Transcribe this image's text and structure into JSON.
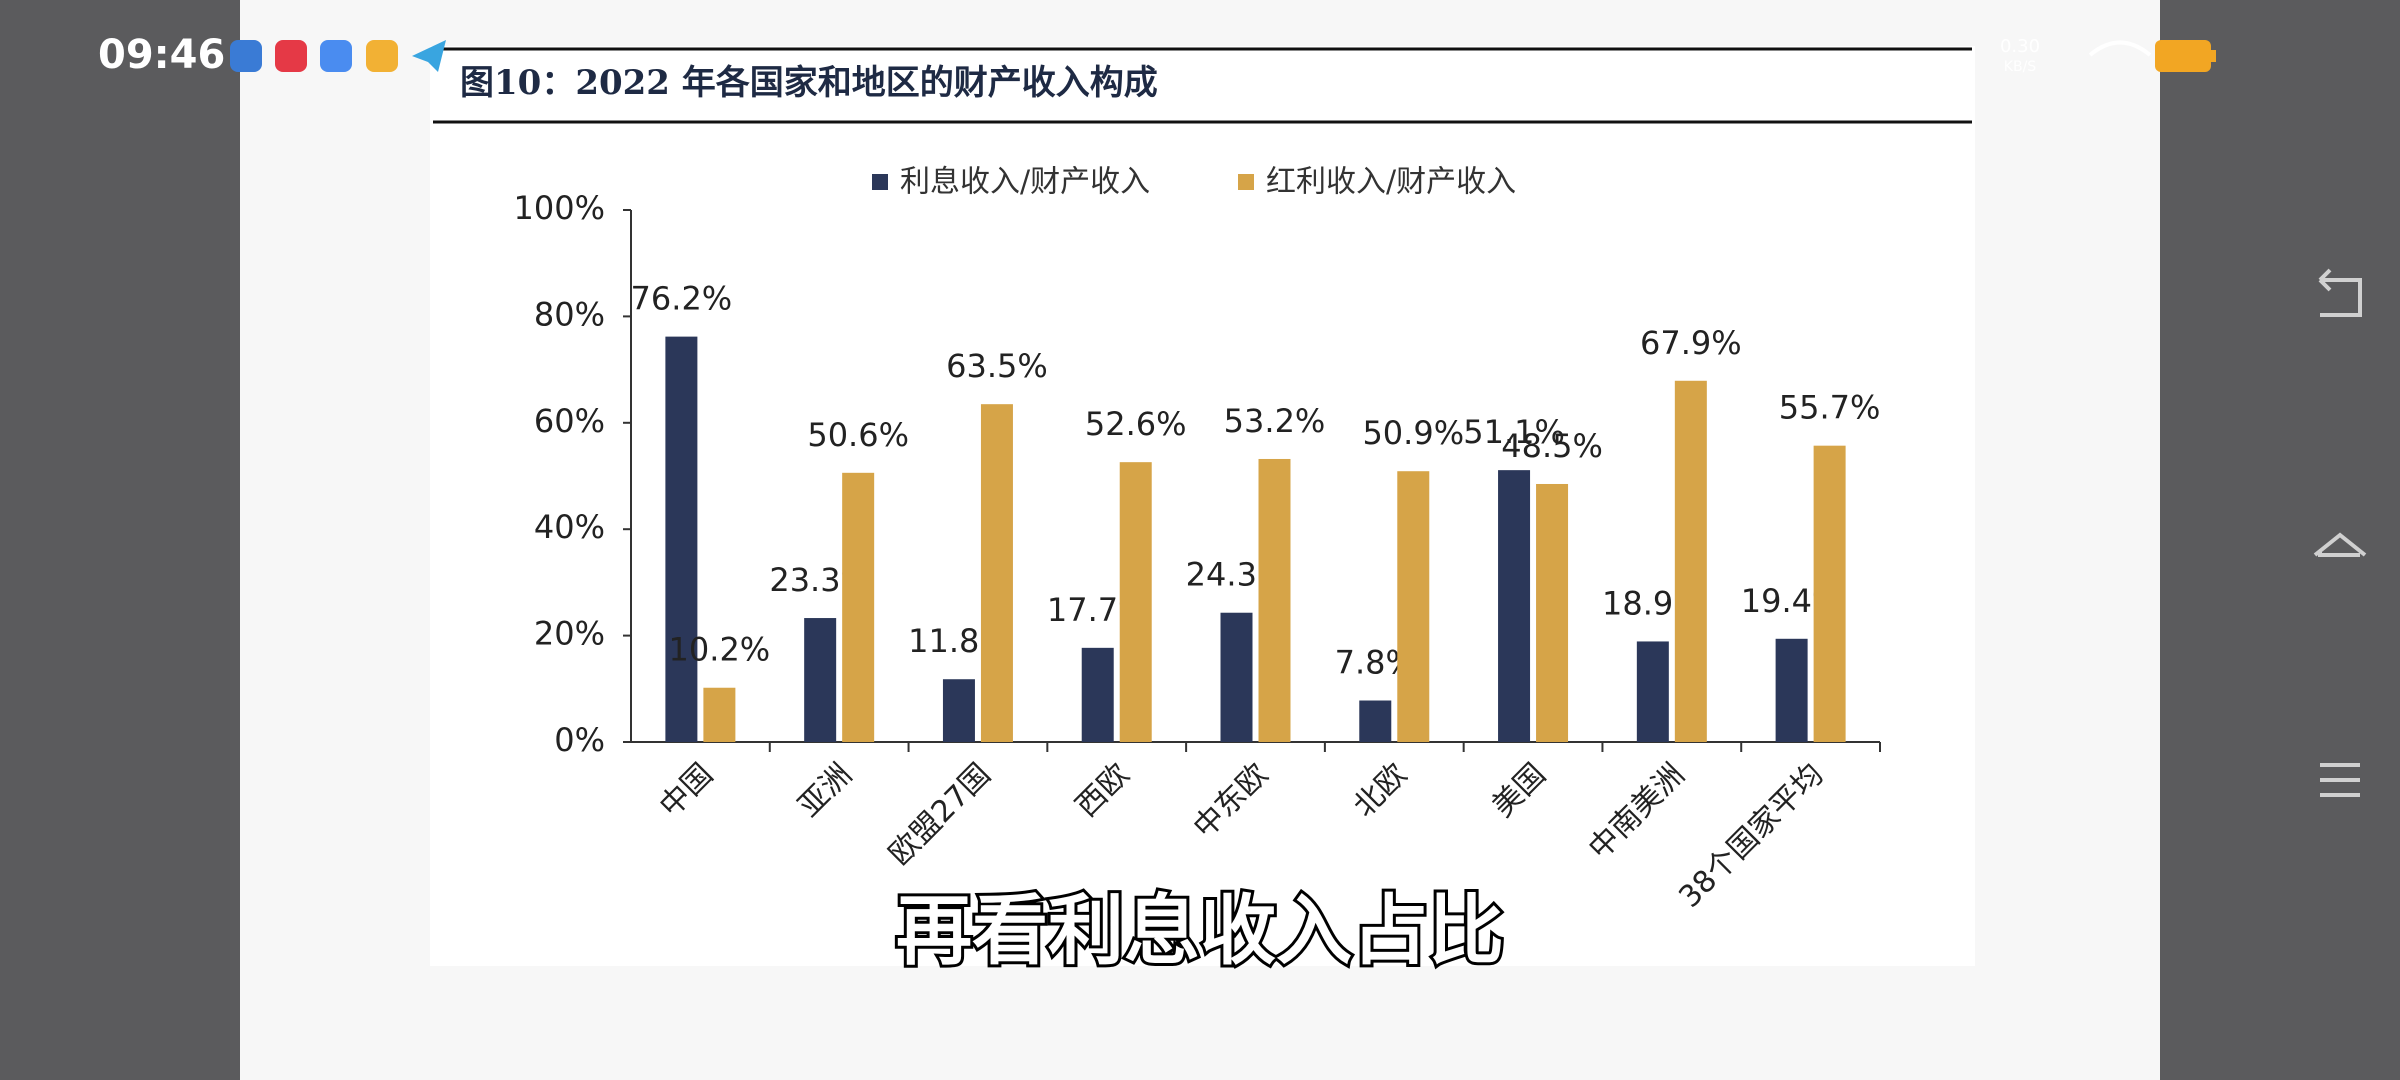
{
  "status_bar": {
    "time": "09:46",
    "net_speed": "0.30",
    "net_unit": "KB/S"
  },
  "subtitle": "再看利息收入占比",
  "chart_data": {
    "type": "bar",
    "title": "图10：2022 年各国家和地区的财产收入构成",
    "categories": [
      "中国",
      "亚洲",
      "欧盟27国",
      "西欧",
      "中东欧",
      "北欧",
      "美国",
      "中南美洲",
      "38个国家平均"
    ],
    "series": [
      {
        "name": "利息收入/财产收入",
        "color": "#2b3759",
        "values": [
          76.2,
          23.3,
          11.8,
          17.7,
          24.3,
          7.8,
          51.1,
          18.9,
          19.4
        ],
        "value_labels": [
          "76.2%",
          "23.3%",
          "11.8%",
          "17.7%",
          "24.3%",
          "7.8%",
          "51.1%",
          "18.9%",
          "19.4%"
        ]
      },
      {
        "name": "红利收入/财产收入",
        "color": "#d6a448",
        "values": [
          10.2,
          50.6,
          63.5,
          52.6,
          53.2,
          50.9,
          48.5,
          67.9,
          55.7
        ],
        "value_labels": [
          "10.2%",
          "50.6%",
          "63.5%",
          "52.6%",
          "53.2%",
          "50.9%",
          "48.5%",
          "67.9%",
          "55.7%"
        ]
      }
    ],
    "ylim": [
      0,
      100
    ],
    "yticks": [
      {
        "value": 0,
        "label": "0%"
      },
      {
        "value": 20,
        "label": "20%"
      },
      {
        "value": 40,
        "label": "40%"
      },
      {
        "value": 60,
        "label": "60%"
      },
      {
        "value": 80,
        "label": "80%"
      },
      {
        "value": 100,
        "label": "100%"
      }
    ],
    "legend": "top"
  }
}
